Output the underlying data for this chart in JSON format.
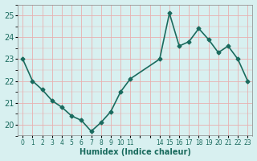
{
  "x": [
    0,
    1,
    2,
    3,
    4,
    5,
    6,
    7,
    8,
    9,
    10,
    11,
    14,
    15,
    16,
    17,
    18,
    19,
    20,
    21,
    22,
    23
  ],
  "y": [
    23.0,
    22.0,
    21.6,
    21.1,
    20.8,
    20.4,
    20.2,
    19.7,
    20.1,
    20.6,
    21.5,
    22.1,
    23.0,
    25.1,
    23.6,
    23.8,
    24.4,
    23.9,
    23.3,
    23.6,
    23.0,
    22.0
  ],
  "xlabel": "Humidex (Indice chaleur)",
  "ylabel": "",
  "line_color": "#1a6b5e",
  "bg_color": "#d8f0f0",
  "grid_color_major": "#e8b0b0",
  "ylim": [
    19.5,
    25.5
  ],
  "xlim": [
    -0.5,
    23.5
  ],
  "yticks": [
    20,
    21,
    22,
    23,
    24,
    25
  ],
  "xticks_all": [
    0,
    1,
    2,
    3,
    4,
    5,
    6,
    7,
    8,
    9,
    10,
    11,
    12,
    13,
    14,
    15,
    16,
    17,
    18,
    19,
    20,
    21,
    22,
    23
  ],
  "xtick_labeled": [
    0,
    1,
    2,
    3,
    4,
    5,
    6,
    7,
    8,
    9,
    10,
    11,
    14,
    15,
    16,
    17,
    18,
    19,
    20,
    21,
    22,
    23
  ],
  "xtick_label_strs": [
    "0",
    "1",
    "2",
    "3",
    "4",
    "5",
    "6",
    "7",
    "8",
    "9",
    "10",
    "11",
    "14",
    "15",
    "16",
    "17",
    "18",
    "19",
    "20",
    "21",
    "22",
    "23"
  ],
  "marker": "D",
  "marker_size": 2.5,
  "line_width": 1.2
}
